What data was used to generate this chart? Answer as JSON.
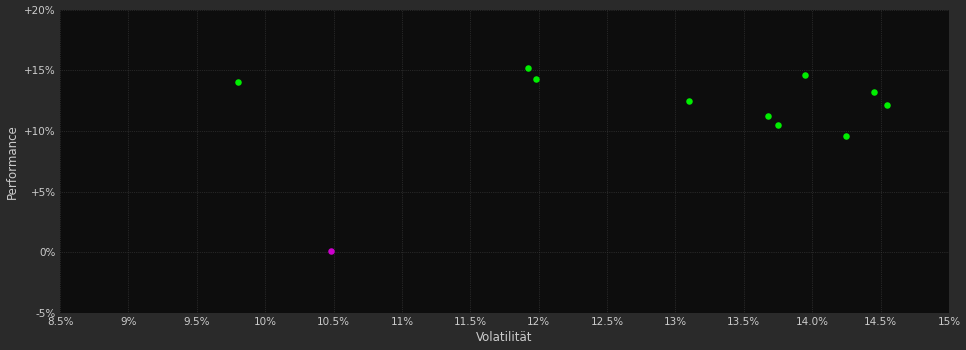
{
  "background_color": "#2a2a2a",
  "plot_bg_color": "#0d0d0d",
  "grid_color": "#404040",
  "tick_label_color": "#cccccc",
  "axis_label_color": "#cccccc",
  "xlabel": "Volatilität",
  "ylabel": "Performance",
  "xlim": [
    0.085,
    0.15
  ],
  "ylim": [
    -0.05,
    0.2
  ],
  "xticks": [
    0.085,
    0.09,
    0.095,
    0.1,
    0.105,
    0.11,
    0.115,
    0.12,
    0.125,
    0.13,
    0.135,
    0.14,
    0.145,
    0.15
  ],
  "yticks": [
    -0.05,
    0.0,
    0.05,
    0.1,
    0.15,
    0.2
  ],
  "green_points": [
    [
      0.098,
      0.14
    ],
    [
      0.1192,
      0.152
    ],
    [
      0.1198,
      0.143
    ],
    [
      0.131,
      0.125
    ],
    [
      0.1368,
      0.112
    ],
    [
      0.1375,
      0.105
    ],
    [
      0.1395,
      0.146
    ],
    [
      0.1425,
      0.096
    ],
    [
      0.1445,
      0.132
    ],
    [
      0.1455,
      0.121
    ]
  ],
  "magenta_points": [
    [
      0.1048,
      0.001
    ]
  ],
  "green_color": "#00ee00",
  "magenta_color": "#cc00cc",
  "marker_size": 22
}
